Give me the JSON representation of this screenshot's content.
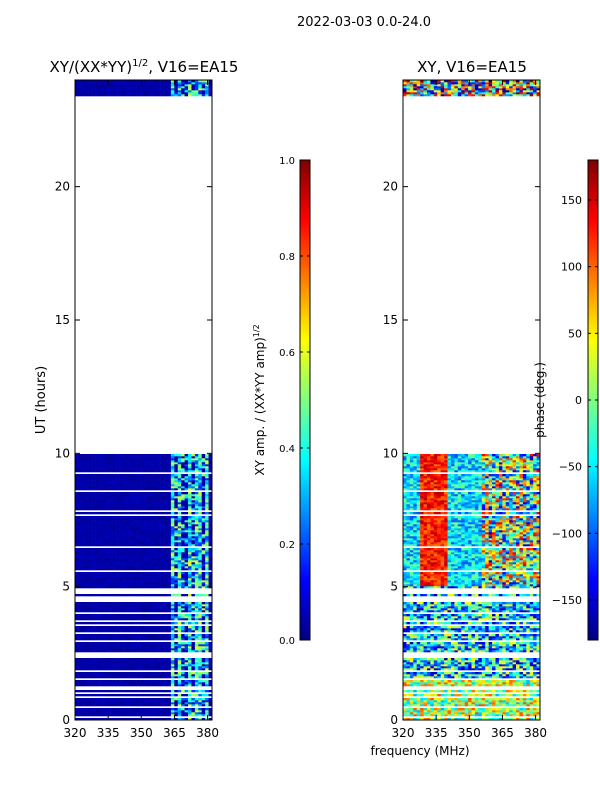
{
  "figure": {
    "suptitle": "2022-03-03 0.0-24.0",
    "xlabel": "frequency (MHz)"
  },
  "chart_data": [
    {
      "type": "heatmap",
      "name": "xy-normalized-amplitude",
      "title_main": "XY/(XX*YY)",
      "title_sup": "1/2",
      "title_tail": ", V16=EA15",
      "ylabel": "UT (hours)",
      "xlim": [
        320,
        382
      ],
      "ylim": [
        0,
        24
      ],
      "xticks": [
        320,
        335,
        350,
        365,
        380
      ],
      "yticks": [
        0,
        5,
        10,
        15,
        20
      ],
      "gap_hours": [
        9.9,
        23.3
      ],
      "colorbar": {
        "label_main": "XY amp. / (XX*YY amp)",
        "label_sup": "1/2",
        "range": [
          0.0,
          1.0
        ],
        "ticks": [
          "0.0",
          "0.2",
          "0.4",
          "0.6",
          "0.8",
          "1.0"
        ]
      }
    },
    {
      "type": "heatmap",
      "name": "xy-phase",
      "title_main": "XY, V16=EA15",
      "xlim": [
        320,
        382
      ],
      "ylim": [
        0,
        24
      ],
      "xticks": [
        320,
        335,
        350,
        365,
        380
      ],
      "yticks": [
        0,
        5,
        10,
        15,
        20
      ],
      "gap_hours": [
        9.9,
        23.3
      ],
      "colorbar": {
        "label_main": "phase (deg.)",
        "range": [
          -180,
          180
        ],
        "ticks": [
          "−150",
          "−100",
          "−50",
          "0",
          "50",
          "100",
          "150"
        ],
        "tick_values": [
          -150,
          -100,
          -50,
          0,
          50,
          100,
          150
        ]
      }
    }
  ]
}
